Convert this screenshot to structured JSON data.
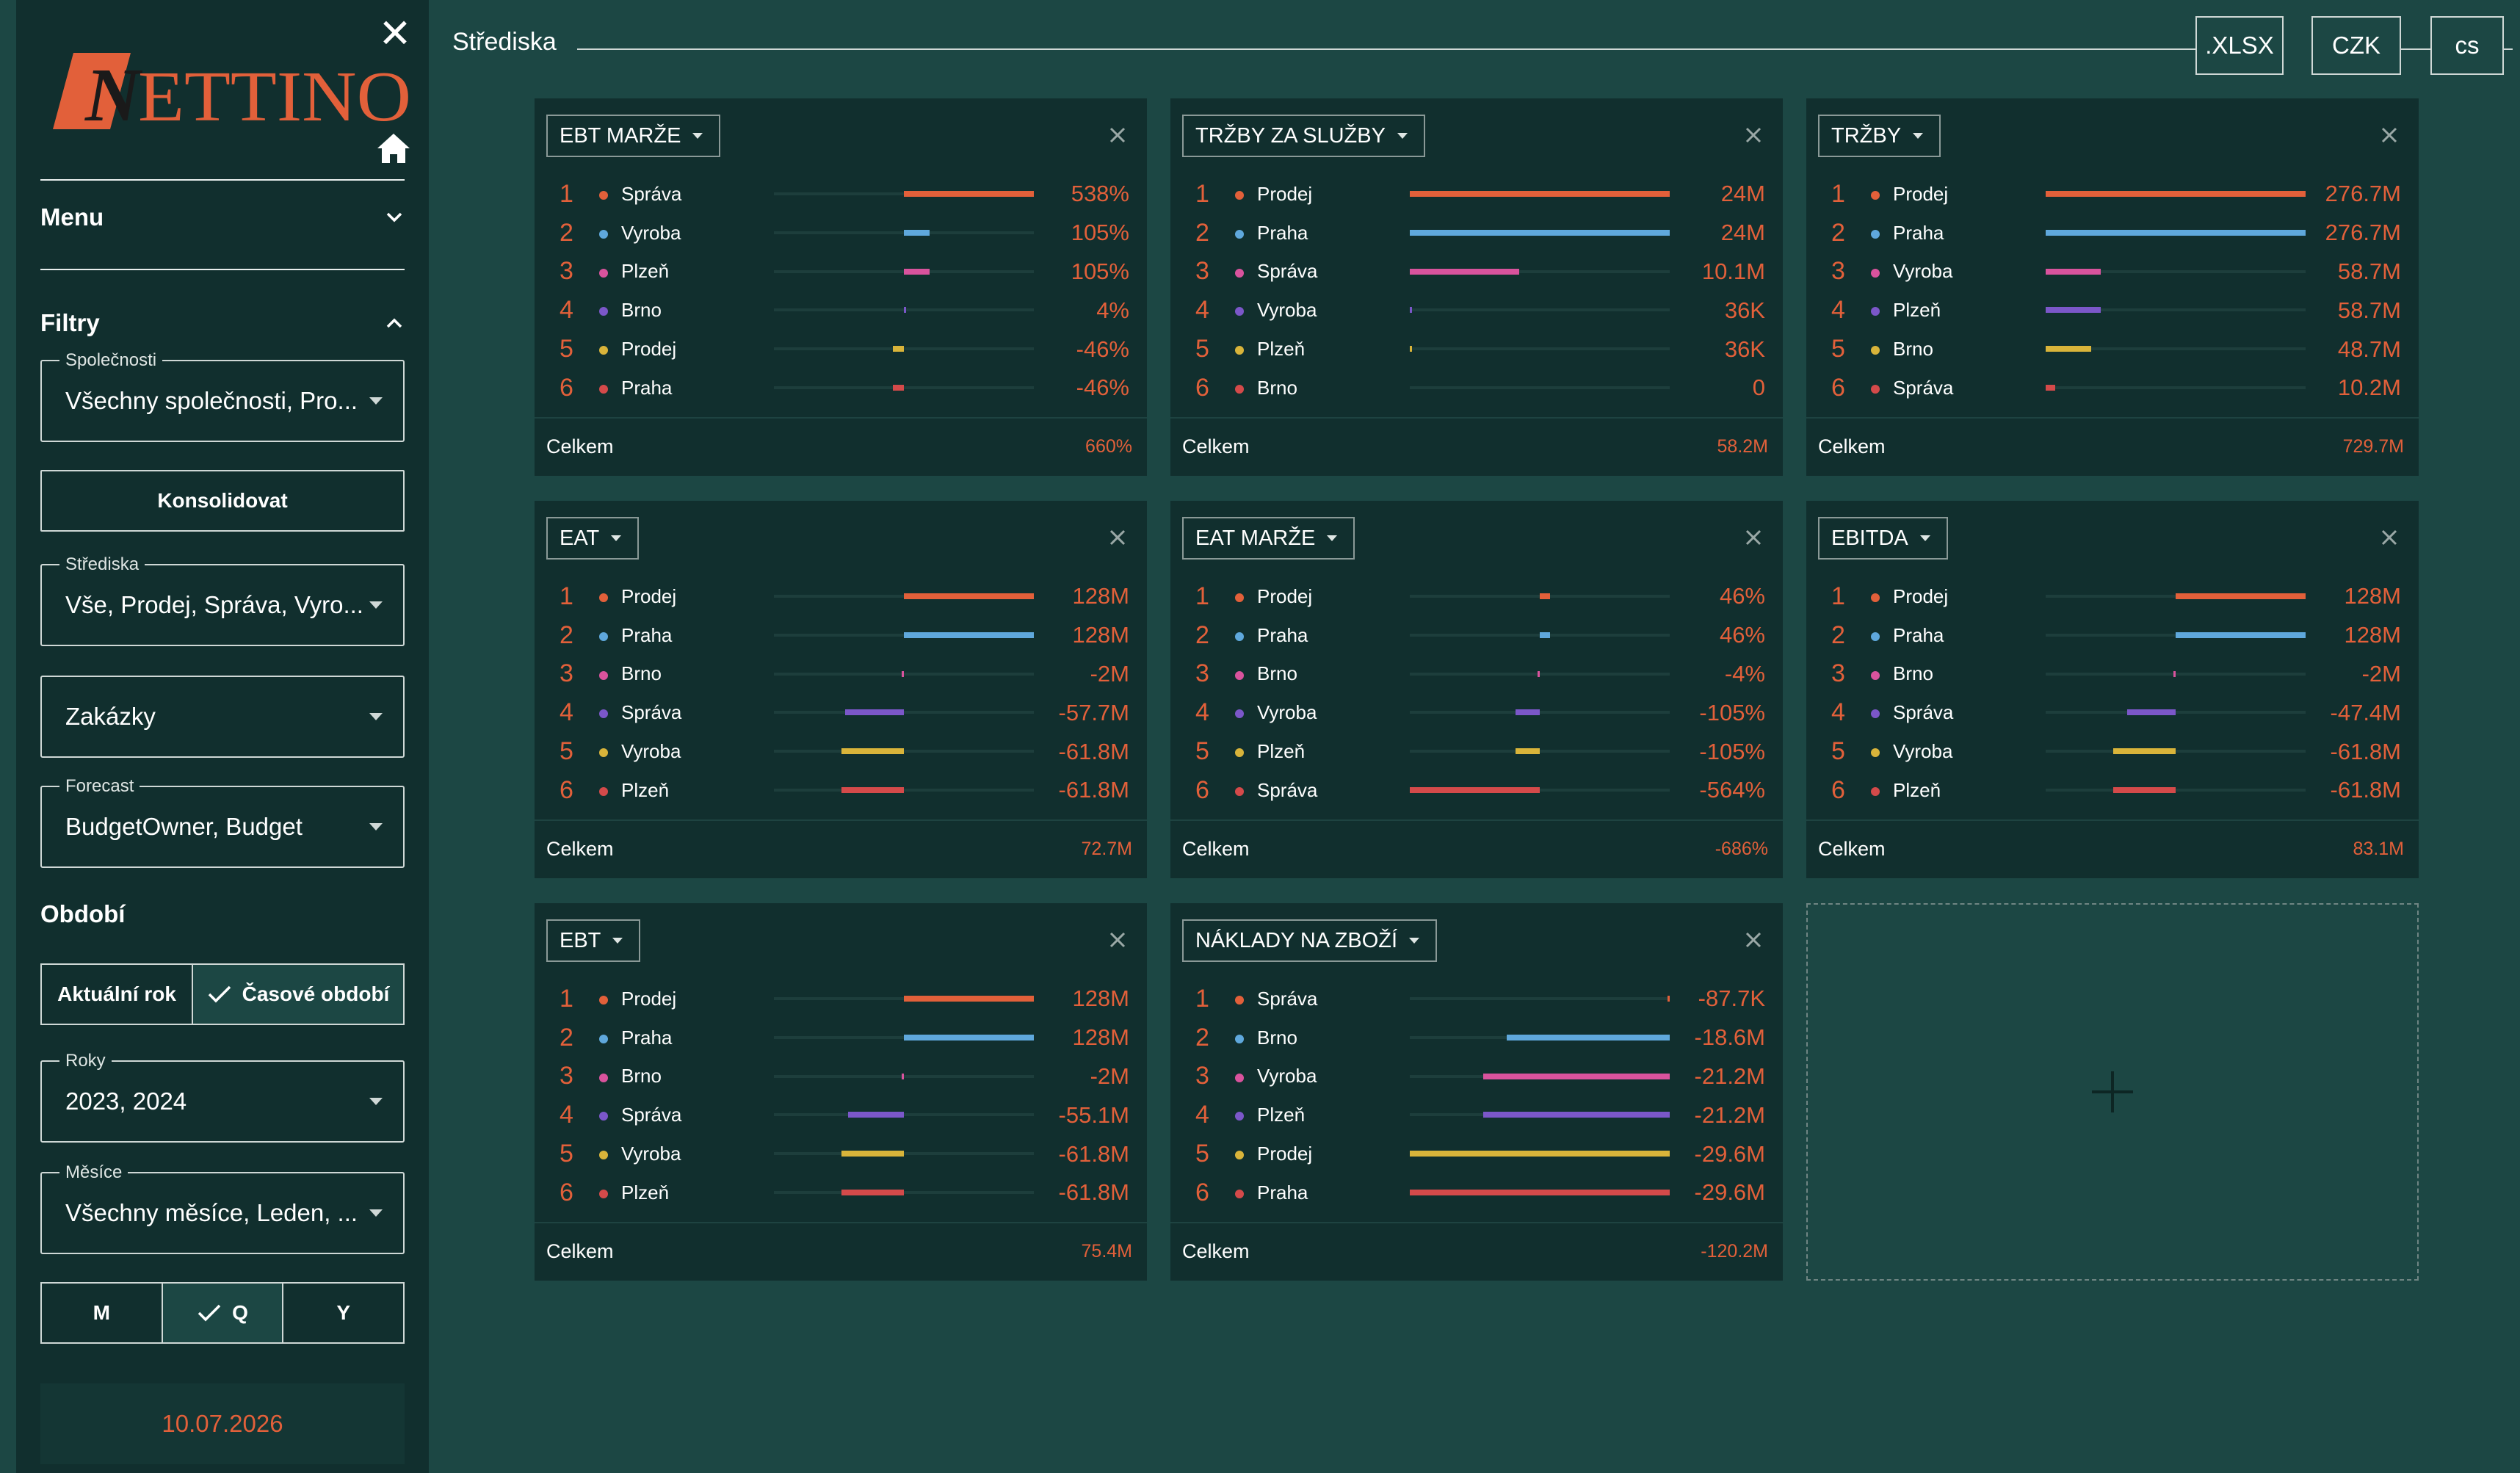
{
  "sidebar": {
    "logo_text": "NETTINO",
    "menu_label": "Menu",
    "filters_label": "Filtry",
    "fields": {
      "companies": {
        "label": "Společnosti",
        "value": "Všechny společnosti, Pro..."
      },
      "centers": {
        "label": "Střediska",
        "value": "Vše, Prodej, Správa, Vyro..."
      },
      "orders": {
        "label": "",
        "value": "Zakázky"
      },
      "forecast": {
        "label": "Forecast",
        "value": "BudgetOwner, Budget"
      },
      "years": {
        "label": "Roky",
        "value": "2023, 2024"
      },
      "months": {
        "label": "Měsíce",
        "value": "Všechny měsíce, Leden, ..."
      }
    },
    "consolidate_label": "Konsolidovat",
    "period_label": "Období",
    "period_toggle": {
      "current_year": "Aktuální rok",
      "time_period": "Časové období",
      "selected": "time_period"
    },
    "granularity": {
      "options": [
        "M",
        "Q",
        "Y"
      ],
      "selected": "Q"
    },
    "date": "10.07.2026"
  },
  "header": {
    "title": "Střediska",
    "export_label": ".XLSX",
    "currency_label": "CZK",
    "language_label": "cs"
  },
  "colors": {
    "Správa": "#e2603a",
    "Vyroba": "#5fa8dc",
    "Plzeň": "#d9539d",
    "Brno": "#7b57c9",
    "Prodej": "#d9b43a",
    "Praha": "#d44a4a",
    "accent": "#e2603a"
  },
  "cards": [
    {
      "metric": "EBT MARŽE",
      "total_label": "Celkem",
      "total": "660%",
      "rows": [
        {
          "rank": "1",
          "name": "Správa",
          "value": "538%",
          "num": 538,
          "color": "#e2603a"
        },
        {
          "rank": "2",
          "name": "Vyroba",
          "value": "105%",
          "num": 105,
          "color": "#5fa8dc"
        },
        {
          "rank": "3",
          "name": "Plzeň",
          "value": "105%",
          "num": 105,
          "color": "#d9539d"
        },
        {
          "rank": "4",
          "name": "Brno",
          "value": "4%",
          "num": 4,
          "color": "#7b57c9"
        },
        {
          "rank": "5",
          "name": "Prodej",
          "value": "-46%",
          "num": -46,
          "color": "#d9b43a"
        },
        {
          "rank": "6",
          "name": "Praha",
          "value": "-46%",
          "num": -46,
          "color": "#d44a4a"
        }
      ]
    },
    {
      "metric": "TRŽBY ZA SLUŽBY",
      "total_label": "Celkem",
      "total": "58.2M",
      "rows": [
        {
          "rank": "1",
          "name": "Prodej",
          "value": "24M",
          "num": 24,
          "color": "#e2603a"
        },
        {
          "rank": "2",
          "name": "Praha",
          "value": "24M",
          "num": 24,
          "color": "#5fa8dc"
        },
        {
          "rank": "3",
          "name": "Správa",
          "value": "10.1M",
          "num": 10.1,
          "color": "#d9539d"
        },
        {
          "rank": "4",
          "name": "Vyroba",
          "value": "36K",
          "num": 0.036,
          "color": "#7b57c9"
        },
        {
          "rank": "5",
          "name": "Plzeň",
          "value": "36K",
          "num": 0.036,
          "color": "#d9b43a"
        },
        {
          "rank": "6",
          "name": "Brno",
          "value": "0",
          "num": 0,
          "color": "#d44a4a"
        }
      ]
    },
    {
      "metric": "TRŽBY",
      "total_label": "Celkem",
      "total": "729.7M",
      "rows": [
        {
          "rank": "1",
          "name": "Prodej",
          "value": "276.7M",
          "num": 276.7,
          "color": "#e2603a"
        },
        {
          "rank": "2",
          "name": "Praha",
          "value": "276.7M",
          "num": 276.7,
          "color": "#5fa8dc"
        },
        {
          "rank": "3",
          "name": "Vyroba",
          "value": "58.7M",
          "num": 58.7,
          "color": "#d9539d"
        },
        {
          "rank": "4",
          "name": "Plzeň",
          "value": "58.7M",
          "num": 58.7,
          "color": "#7b57c9"
        },
        {
          "rank": "5",
          "name": "Brno",
          "value": "48.7M",
          "num": 48.7,
          "color": "#d9b43a"
        },
        {
          "rank": "6",
          "name": "Správa",
          "value": "10.2M",
          "num": 10.2,
          "color": "#d44a4a"
        }
      ]
    },
    {
      "metric": "EAT",
      "total_label": "Celkem",
      "total": "72.7M",
      "rows": [
        {
          "rank": "1",
          "name": "Prodej",
          "value": "128M",
          "num": 128,
          "color": "#e2603a"
        },
        {
          "rank": "2",
          "name": "Praha",
          "value": "128M",
          "num": 128,
          "color": "#5fa8dc"
        },
        {
          "rank": "3",
          "name": "Brno",
          "value": "-2M",
          "num": -2,
          "color": "#d9539d"
        },
        {
          "rank": "4",
          "name": "Správa",
          "value": "-57.7M",
          "num": -57.7,
          "color": "#7b57c9"
        },
        {
          "rank": "5",
          "name": "Vyroba",
          "value": "-61.8M",
          "num": -61.8,
          "color": "#d9b43a"
        },
        {
          "rank": "6",
          "name": "Plzeň",
          "value": "-61.8M",
          "num": -61.8,
          "color": "#d44a4a"
        }
      ]
    },
    {
      "metric": "EAT MARŽE",
      "total_label": "Celkem",
      "total": "-686%",
      "rows": [
        {
          "rank": "1",
          "name": "Prodej",
          "value": "46%",
          "num": 46,
          "color": "#e2603a"
        },
        {
          "rank": "2",
          "name": "Praha",
          "value": "46%",
          "num": 46,
          "color": "#5fa8dc"
        },
        {
          "rank": "3",
          "name": "Brno",
          "value": "-4%",
          "num": -4,
          "color": "#d9539d"
        },
        {
          "rank": "4",
          "name": "Vyroba",
          "value": "-105%",
          "num": -105,
          "color": "#7b57c9"
        },
        {
          "rank": "5",
          "name": "Plzeň",
          "value": "-105%",
          "num": -105,
          "color": "#d9b43a"
        },
        {
          "rank": "6",
          "name": "Správa",
          "value": "-564%",
          "num": -564,
          "color": "#d44a4a"
        }
      ]
    },
    {
      "metric": "EBITDA",
      "total_label": "Celkem",
      "total": "83.1M",
      "rows": [
        {
          "rank": "1",
          "name": "Prodej",
          "value": "128M",
          "num": 128,
          "color": "#e2603a"
        },
        {
          "rank": "2",
          "name": "Praha",
          "value": "128M",
          "num": 128,
          "color": "#5fa8dc"
        },
        {
          "rank": "3",
          "name": "Brno",
          "value": "-2M",
          "num": -2,
          "color": "#d9539d"
        },
        {
          "rank": "4",
          "name": "Správa",
          "value": "-47.4M",
          "num": -47.4,
          "color": "#7b57c9"
        },
        {
          "rank": "5",
          "name": "Vyroba",
          "value": "-61.8M",
          "num": -61.8,
          "color": "#d9b43a"
        },
        {
          "rank": "6",
          "name": "Plzeň",
          "value": "-61.8M",
          "num": -61.8,
          "color": "#d44a4a"
        }
      ]
    },
    {
      "metric": "EBT",
      "total_label": "Celkem",
      "total": "75.4M",
      "rows": [
        {
          "rank": "1",
          "name": "Prodej",
          "value": "128M",
          "num": 128,
          "color": "#e2603a"
        },
        {
          "rank": "2",
          "name": "Praha",
          "value": "128M",
          "num": 128,
          "color": "#5fa8dc"
        },
        {
          "rank": "3",
          "name": "Brno",
          "value": "-2M",
          "num": -2,
          "color": "#d9539d"
        },
        {
          "rank": "4",
          "name": "Správa",
          "value": "-55.1M",
          "num": -55.1,
          "color": "#7b57c9"
        },
        {
          "rank": "5",
          "name": "Vyroba",
          "value": "-61.8M",
          "num": -61.8,
          "color": "#d9b43a"
        },
        {
          "rank": "6",
          "name": "Plzeň",
          "value": "-61.8M",
          "num": -61.8,
          "color": "#d44a4a"
        }
      ]
    },
    {
      "metric": "NÁKLADY NA ZBOŽÍ",
      "total_label": "Celkem",
      "total": "-120.2M",
      "rows": [
        {
          "rank": "1",
          "name": "Správa",
          "value": "-87.7K",
          "num": -0.0877,
          "color": "#e2603a"
        },
        {
          "rank": "2",
          "name": "Brno",
          "value": "-18.6M",
          "num": -18.6,
          "color": "#5fa8dc"
        },
        {
          "rank": "3",
          "name": "Vyroba",
          "value": "-21.2M",
          "num": -21.2,
          "color": "#d9539d"
        },
        {
          "rank": "4",
          "name": "Plzeň",
          "value": "-21.2M",
          "num": -21.2,
          "color": "#7b57c9"
        },
        {
          "rank": "5",
          "name": "Prodej",
          "value": "-29.6M",
          "num": -29.6,
          "color": "#d9b43a"
        },
        {
          "rank": "6",
          "name": "Praha",
          "value": "-29.6M",
          "num": -29.6,
          "color": "#d44a4a"
        }
      ]
    }
  ]
}
